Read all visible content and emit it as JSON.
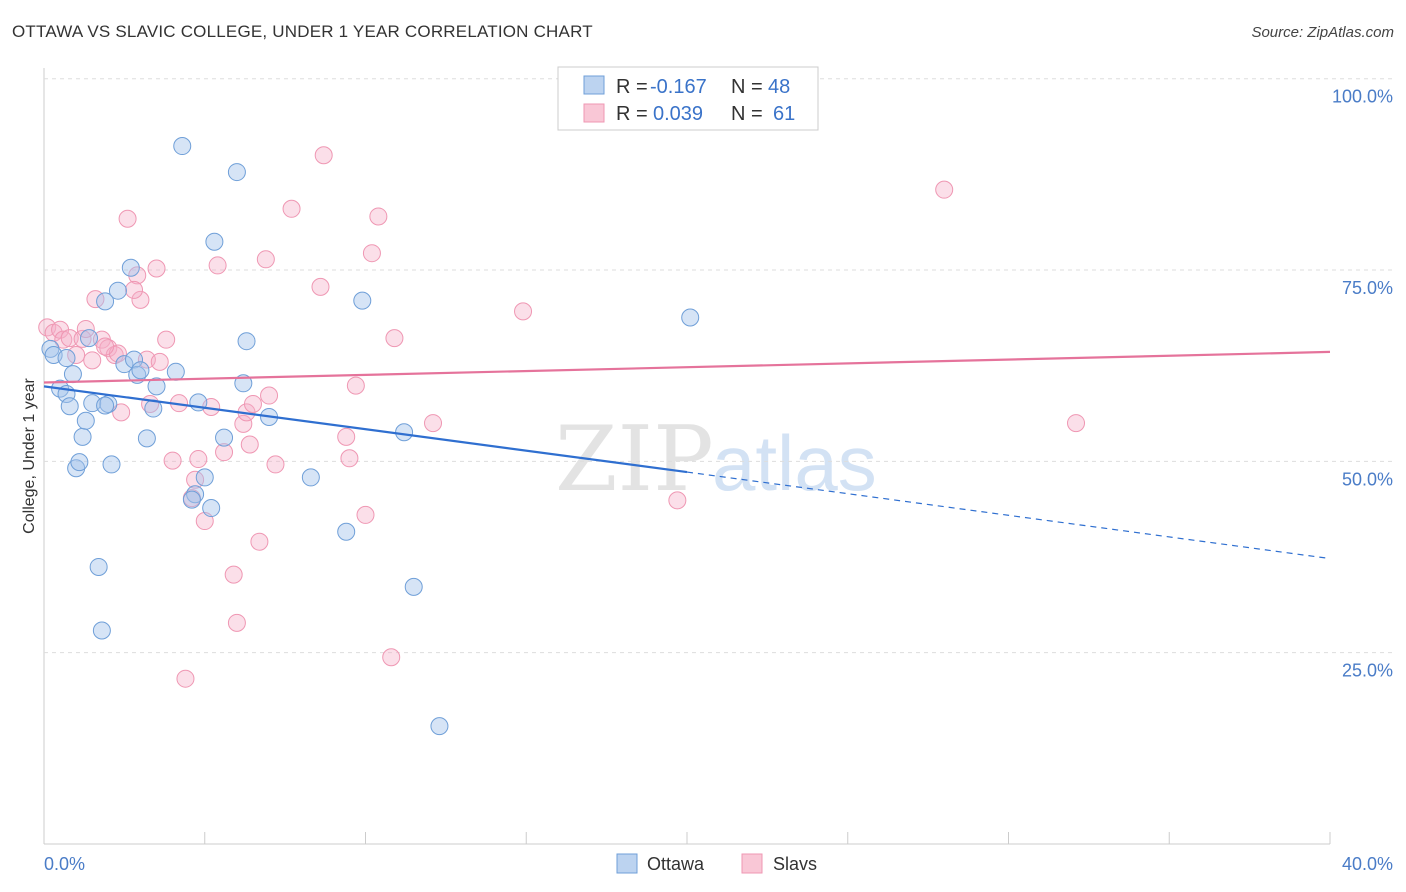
{
  "header": {
    "title": "OTTAWA VS SLAVIC COLLEGE, UNDER 1 YEAR CORRELATION CHART",
    "source": "Source: ZipAtlas.com"
  },
  "watermark": {
    "zip": "ZIP",
    "atlas": "atlas"
  },
  "legend": {
    "rows": [
      {
        "r_label": "R =",
        "r_value": "-0.167",
        "n_label": "N =",
        "n_value": "48"
      },
      {
        "r_label": "R =",
        "r_value": "0.039",
        "n_label": "N =",
        "n_value": "61"
      }
    ]
  },
  "bottom_legend": [
    "Ottawa",
    "Slavs"
  ],
  "chart_data": {
    "type": "scatter",
    "title": "OTTAWA VS SLAVIC COLLEGE, UNDER 1 YEAR CORRELATION CHART",
    "xlabel": "",
    "ylabel": "College, Under 1 year",
    "xlim": [
      0,
      40
    ],
    "ylim": [
      0,
      105
    ],
    "x_tick_labels": [
      "0.0%",
      "40.0%"
    ],
    "y_ticks": [
      25,
      50,
      75,
      100
    ],
    "y_tick_labels": [
      "25.0%",
      "50.0%",
      "75.0%",
      "100.0%"
    ],
    "grid": "horizontal dashed",
    "legend_position": "top-center",
    "colors": {
      "Ottawa": "#6f9fd8",
      "Slavs": "#ef97b3",
      "ottawa_line": "#2f6fd0",
      "slavs_line": "#e5739b"
    },
    "series": [
      {
        "name": "Ottawa",
        "r": -0.167,
        "n": 48,
        "trend": {
          "x": [
            0,
            20,
            40
          ],
          "y": [
            59.8,
            48.6,
            37.3
          ],
          "solid_until_x": 20
        },
        "points": [
          [
            0.2,
            64.7
          ],
          [
            0.3,
            63.9
          ],
          [
            0.5,
            59.5
          ],
          [
            0.7,
            58.8
          ],
          [
            0.7,
            63.5
          ],
          [
            0.8,
            57.2
          ],
          [
            0.9,
            61.4
          ],
          [
            1.0,
            49.1
          ],
          [
            1.1,
            49.9
          ],
          [
            1.2,
            53.2
          ],
          [
            1.3,
            55.3
          ],
          [
            1.4,
            66.1
          ],
          [
            1.5,
            57.6
          ],
          [
            1.7,
            36.2
          ],
          [
            1.8,
            27.9
          ],
          [
            1.9,
            70.9
          ],
          [
            2.0,
            57.5
          ],
          [
            2.1,
            49.6
          ],
          [
            2.3,
            72.3
          ],
          [
            2.5,
            62.7
          ],
          [
            2.7,
            75.3
          ],
          [
            2.8,
            63.3
          ],
          [
            2.9,
            61.3
          ],
          [
            3.2,
            53.0
          ],
          [
            3.4,
            56.9
          ],
          [
            3.5,
            59.8
          ],
          [
            4.1,
            61.7
          ],
          [
            4.3,
            91.2
          ],
          [
            4.7,
            45.7
          ],
          [
            4.8,
            57.7
          ],
          [
            5.0,
            47.9
          ],
          [
            5.2,
            43.9
          ],
          [
            5.3,
            78.7
          ],
          [
            5.6,
            53.1
          ],
          [
            6.0,
            87.8
          ],
          [
            6.3,
            65.7
          ],
          [
            6.2,
            60.2
          ],
          [
            7.0,
            55.8
          ],
          [
            8.3,
            47.9
          ],
          [
            9.4,
            40.8
          ],
          [
            9.9,
            71.0
          ],
          [
            11.2,
            53.8
          ],
          [
            11.5,
            33.6
          ],
          [
            12.3,
            15.4
          ],
          [
            20.1,
            68.8
          ],
          [
            4.6,
            45.0
          ],
          [
            3.0,
            61.9
          ],
          [
            1.9,
            57.3
          ]
        ]
      },
      {
        "name": "Slavs",
        "r": 0.039,
        "n": 61,
        "trend": {
          "x": [
            0,
            40
          ],
          "y": [
            60.3,
            64.3
          ]
        },
        "points": [
          [
            0.1,
            67.5
          ],
          [
            0.3,
            66.8
          ],
          [
            0.5,
            67.2
          ],
          [
            0.6,
            65.9
          ],
          [
            0.8,
            66.1
          ],
          [
            1.0,
            63.9
          ],
          [
            1.2,
            66.0
          ],
          [
            1.3,
            67.3
          ],
          [
            1.5,
            63.2
          ],
          [
            1.6,
            71.2
          ],
          [
            1.8,
            65.9
          ],
          [
            2.0,
            64.8
          ],
          [
            2.2,
            63.9
          ],
          [
            2.3,
            64.1
          ],
          [
            2.4,
            56.4
          ],
          [
            2.6,
            81.7
          ],
          [
            2.9,
            74.3
          ],
          [
            3.0,
            71.1
          ],
          [
            3.2,
            63.3
          ],
          [
            3.3,
            57.5
          ],
          [
            3.5,
            75.2
          ],
          [
            3.6,
            63.0
          ],
          [
            3.8,
            65.9
          ],
          [
            4.0,
            50.1
          ],
          [
            4.2,
            57.6
          ],
          [
            4.4,
            21.6
          ],
          [
            4.6,
            45.2
          ],
          [
            4.7,
            47.6
          ],
          [
            4.8,
            50.3
          ],
          [
            5.0,
            42.2
          ],
          [
            5.2,
            57.1
          ],
          [
            5.4,
            75.6
          ],
          [
            5.6,
            51.2
          ],
          [
            5.9,
            35.2
          ],
          [
            6.2,
            54.9
          ],
          [
            6.3,
            56.4
          ],
          [
            6.5,
            57.5
          ],
          [
            6.7,
            39.5
          ],
          [
            6.9,
            76.4
          ],
          [
            7.2,
            49.6
          ],
          [
            7.7,
            83.0
          ],
          [
            8.6,
            72.8
          ],
          [
            8.7,
            90.0
          ],
          [
            9.4,
            53.2
          ],
          [
            9.5,
            50.4
          ],
          [
            9.7,
            59.9
          ],
          [
            10.0,
            43.0
          ],
          [
            10.2,
            77.2
          ],
          [
            10.4,
            82.0
          ],
          [
            10.8,
            24.4
          ],
          [
            10.9,
            66.1
          ],
          [
            12.1,
            55.0
          ],
          [
            14.9,
            69.6
          ],
          [
            19.7,
            44.9
          ],
          [
            28.0,
            85.5
          ],
          [
            32.1,
            55.0
          ],
          [
            6.0,
            28.9
          ],
          [
            6.4,
            52.2
          ],
          [
            2.8,
            72.4
          ],
          [
            1.9,
            65.0
          ],
          [
            7.0,
            58.6
          ]
        ]
      }
    ]
  }
}
